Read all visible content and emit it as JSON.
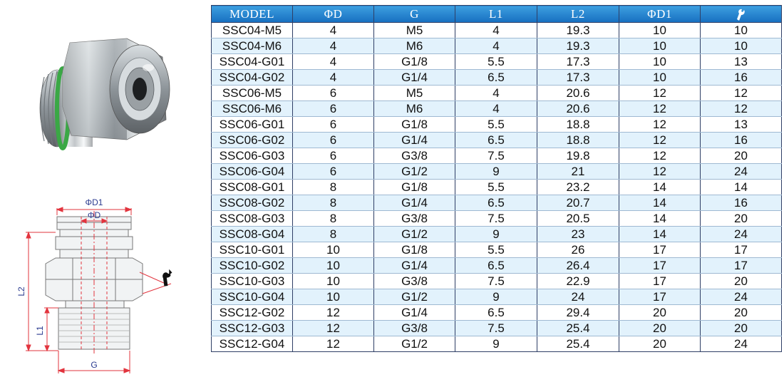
{
  "table": {
    "headers": [
      "MODEL",
      "ΦD",
      "G",
      "L1",
      "L2",
      "ΦD1"
    ],
    "wrench_header_icon": "wrench-icon",
    "rows": [
      [
        "SSC04-M5",
        "4",
        "M5",
        "4",
        "19.3",
        "10",
        "10"
      ],
      [
        "SSC04-M6",
        "4",
        "M6",
        "4",
        "19.3",
        "10",
        "10"
      ],
      [
        "SSC04-G01",
        "4",
        "G1/8",
        "5.5",
        "17.3",
        "10",
        "13"
      ],
      [
        "SSC04-G02",
        "4",
        "G1/4",
        "6.5",
        "17.3",
        "10",
        "16"
      ],
      [
        "SSC06-M5",
        "6",
        "M5",
        "4",
        "20.6",
        "12",
        "12"
      ],
      [
        "SSC06-M6",
        "6",
        "M6",
        "4",
        "20.6",
        "12",
        "12"
      ],
      [
        "SSC06-G01",
        "6",
        "G1/8",
        "5.5",
        "18.8",
        "12",
        "13"
      ],
      [
        "SSC06-G02",
        "6",
        "G1/4",
        "6.5",
        "18.8",
        "12",
        "16"
      ],
      [
        "SSC06-G03",
        "6",
        "G3/8",
        "7.5",
        "19.8",
        "12",
        "20"
      ],
      [
        "SSC06-G04",
        "6",
        "G1/2",
        "9",
        "21",
        "12",
        "24"
      ],
      [
        "SSC08-G01",
        "8",
        "G1/8",
        "5.5",
        "23.2",
        "14",
        "14"
      ],
      [
        "SSC08-G02",
        "8",
        "G1/4",
        "6.5",
        "20.7",
        "14",
        "16"
      ],
      [
        "SSC08-G03",
        "8",
        "G3/8",
        "7.5",
        "20.5",
        "14",
        "20"
      ],
      [
        "SSC08-G04",
        "8",
        "G1/2",
        "9",
        "23",
        "14",
        "24"
      ],
      [
        "SSC10-G01",
        "10",
        "G1/8",
        "5.5",
        "26",
        "17",
        "17"
      ],
      [
        "SSC10-G02",
        "10",
        "G1/4",
        "6.5",
        "26.4",
        "17",
        "17"
      ],
      [
        "SSC10-G03",
        "10",
        "G3/8",
        "7.5",
        "22.9",
        "17",
        "20"
      ],
      [
        "SSC10-G04",
        "10",
        "G1/2",
        "9",
        "24",
        "17",
        "24"
      ],
      [
        "SSC12-G02",
        "12",
        "G1/4",
        "6.5",
        "29.4",
        "20",
        "20"
      ],
      [
        "SSC12-G03",
        "12",
        "G3/8",
        "7.5",
        "25.4",
        "20",
        "20"
      ],
      [
        "SSC12-G04",
        "12",
        "G1/2",
        "9",
        "25.4",
        "20",
        "24"
      ]
    ]
  },
  "drawing": {
    "labels": {
      "d1": "ΦD1",
      "d": "ΦD",
      "l2": "L2",
      "l1": "L1",
      "g": "G"
    },
    "wrench_icon": "wrench-icon"
  },
  "photo": {
    "icon": "push-in-fitting-photo"
  },
  "colors": {
    "header_gradient_top": "#3d9fe0",
    "header_gradient_bottom": "#1770c0",
    "row_stripe": "#e2f2fc",
    "dimension_line": "#e2343e",
    "drawing_label": "#2a3a8f"
  }
}
